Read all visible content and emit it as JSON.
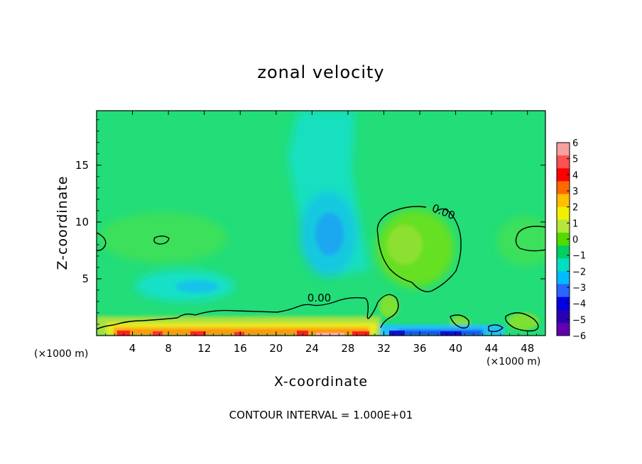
{
  "chart_data": {
    "type": "heatmap",
    "title": "zonal velocity",
    "xlabel": "X-coordinate",
    "ylabel": "Z-coordinate",
    "x_unit_label_left": "(×1000 m)",
    "x_unit_label_right": "(×1000 m)",
    "footer": "CONTOUR INTERVAL = 1.000E+01",
    "xlim": [
      0,
      50
    ],
    "ylim": [
      0,
      19.8
    ],
    "x_ticks": [
      "4",
      "8",
      "12",
      "16",
      "20",
      "24",
      "28",
      "32",
      "36",
      "40",
      "44",
      "48"
    ],
    "y_ticks": [
      "5",
      "10",
      "15"
    ],
    "colorbar": {
      "labels": [
        "6",
        "5",
        "4",
        "3",
        "2",
        "1",
        "0",
        "−1",
        "−2",
        "−3",
        "−4",
        "−5",
        "−6"
      ],
      "range": [
        -6,
        6
      ],
      "colors": [
        "#f6a0a0",
        "#ff5050",
        "#ff0000",
        "#ff6a00",
        "#ffc000",
        "#f0f000",
        "#b4e63c",
        "#50dc00",
        "#00d060",
        "#00e0c0",
        "#00bcff",
        "#2864ff",
        "#0000e0",
        "#2800b4",
        "#6000b0"
      ]
    },
    "contour_labels": [
      {
        "text": "0.00",
        "x": 38.5,
        "y": 10.6
      },
      {
        "text": "0.00",
        "x": 24.8,
        "y": 3.0
      }
    ]
  }
}
